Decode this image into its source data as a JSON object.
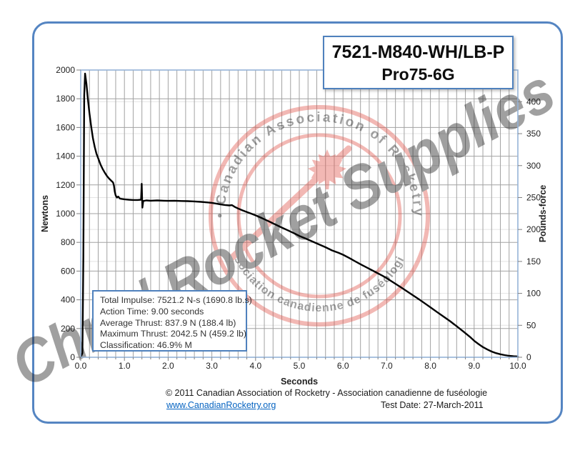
{
  "title_box": {
    "line1": "7521-M840-WH/LB-P",
    "line2": "Pro75-6G"
  },
  "chart_data": {
    "type": "line",
    "title": "",
    "x_axis": {
      "label": "Seconds",
      "min": 0,
      "max": 10,
      "major_step": 1.0,
      "minor_step": 0.2,
      "tick_labels": [
        "0.0",
        "1.0",
        "2.0",
        "3.0",
        "4.0",
        "5.0",
        "6.0",
        "7.0",
        "8.0",
        "9.0",
        "10.0"
      ]
    },
    "y_axis_left": {
      "label": "Newtons",
      "min": 0,
      "max": 2000,
      "tick_step": 200,
      "tick_labels": [
        "0",
        "200",
        "400",
        "600",
        "800",
        "1000",
        "1200",
        "1400",
        "1600",
        "1800",
        "2000"
      ]
    },
    "y_axis_right": {
      "label": "Pounds-force",
      "min": 0,
      "tick_step": 50,
      "lbf_per_newton": 0.2248,
      "tick_labels": [
        "0",
        "50",
        "100",
        "150",
        "200",
        "250",
        "300",
        "350",
        "400"
      ]
    },
    "grid": true,
    "legend": false,
    "series": [
      {
        "name": "Thrust",
        "color": "#000000",
        "points": [
          [
            0,
            0
          ],
          [
            0.04,
            30
          ],
          [
            0.06,
            700
          ],
          [
            0.08,
            1820
          ],
          [
            0.1,
            1975
          ],
          [
            0.13,
            1905
          ],
          [
            0.16,
            1810
          ],
          [
            0.2,
            1700
          ],
          [
            0.24,
            1605
          ],
          [
            0.28,
            1525
          ],
          [
            0.32,
            1465
          ],
          [
            0.36,
            1418
          ],
          [
            0.4,
            1385
          ],
          [
            0.45,
            1345
          ],
          [
            0.5,
            1312
          ],
          [
            0.55,
            1285
          ],
          [
            0.6,
            1262
          ],
          [
            0.65,
            1244
          ],
          [
            0.7,
            1229
          ],
          [
            0.74,
            1217
          ],
          [
            0.76,
            1196
          ],
          [
            0.78,
            1152
          ],
          [
            0.8,
            1126
          ],
          [
            0.83,
            1112
          ],
          [
            0.86,
            1119
          ],
          [
            0.89,
            1106
          ],
          [
            0.93,
            1103
          ],
          [
            1.0,
            1100
          ],
          [
            1.1,
            1097
          ],
          [
            1.2,
            1095
          ],
          [
            1.3,
            1095
          ],
          [
            1.38,
            1097
          ],
          [
            1.395,
            1208
          ],
          [
            1.41,
            1042
          ],
          [
            1.43,
            1088
          ],
          [
            1.5,
            1092
          ],
          [
            1.6,
            1090
          ],
          [
            1.75,
            1092
          ],
          [
            1.9,
            1090
          ],
          [
            2.0,
            1089
          ],
          [
            2.15,
            1090
          ],
          [
            2.3,
            1088
          ],
          [
            2.45,
            1087
          ],
          [
            2.6,
            1085
          ],
          [
            2.75,
            1082
          ],
          [
            2.9,
            1078
          ],
          [
            3.0,
            1075
          ],
          [
            3.1,
            1070
          ],
          [
            3.2,
            1064
          ],
          [
            3.3,
            1060
          ],
          [
            3.4,
            1057
          ],
          [
            3.46,
            1059
          ],
          [
            3.52,
            1048
          ],
          [
            3.6,
            1036
          ],
          [
            3.7,
            1023
          ],
          [
            3.8,
            1011
          ],
          [
            3.9,
            1000
          ],
          [
            4.0,
            988
          ],
          [
            4.15,
            968
          ],
          [
            4.3,
            947
          ],
          [
            4.45,
            925
          ],
          [
            4.6,
            903
          ],
          [
            4.75,
            882
          ],
          [
            4.9,
            860
          ],
          [
            5.0,
            845
          ],
          [
            5.15,
            826
          ],
          [
            5.3,
            806
          ],
          [
            5.45,
            786
          ],
          [
            5.6,
            766
          ],
          [
            5.75,
            744
          ],
          [
            5.9,
            727
          ],
          [
            6.0,
            714
          ],
          [
            6.15,
            690
          ],
          [
            6.3,
            664
          ],
          [
            6.45,
            640
          ],
          [
            6.6,
            616
          ],
          [
            6.75,
            592
          ],
          [
            6.9,
            568
          ],
          [
            7.0,
            550
          ],
          [
            7.15,
            521
          ],
          [
            7.3,
            492
          ],
          [
            7.45,
            462
          ],
          [
            7.6,
            432
          ],
          [
            7.75,
            401
          ],
          [
            7.9,
            369
          ],
          [
            8.0,
            348
          ],
          [
            8.15,
            315
          ],
          [
            8.3,
            283
          ],
          [
            8.45,
            251
          ],
          [
            8.6,
            216
          ],
          [
            8.75,
            180
          ],
          [
            8.9,
            143
          ],
          [
            9.0,
            115
          ],
          [
            9.1,
            92
          ],
          [
            9.2,
            71
          ],
          [
            9.3,
            54
          ],
          [
            9.4,
            40
          ],
          [
            9.5,
            29
          ],
          [
            9.6,
            21
          ],
          [
            9.7,
            15
          ],
          [
            9.8,
            10
          ],
          [
            9.9,
            7
          ],
          [
            10.0,
            5
          ]
        ]
      }
    ]
  },
  "info_box": {
    "lines": [
      "Total Impulse: 7521.2 N-s (1690.8 lb.s)",
      "Action Time: 9.00 seconds",
      "Average Thrust: 837.9 N (188.4 lb)",
      "Maximum Thrust: 2042.5 N (459.2 lb)",
      "Classification: 46.9% M"
    ]
  },
  "watermark": {
    "script_text": "Chris' Rocket Supplies",
    "stamp_top_text": "Canadian Association of Rocketry",
    "stamp_bottom_text": "Association canadienne de fuséologie",
    "separator": "•",
    "color": "#e2574e"
  },
  "footer": {
    "copyright": "© 2011 Canadian Association of Rocketry - Association canadienne de fuséologie",
    "link": "www.CanadianRocketry.org",
    "test_date": "Test  Date: 27-March-2011"
  }
}
